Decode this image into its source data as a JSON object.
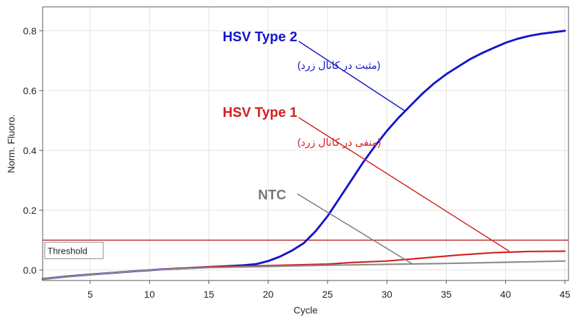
{
  "chart_data": {
    "type": "line",
    "xlabel": "Cycle",
    "ylabel": "Norm. Fluoro.",
    "xlim": [
      1,
      45.3
    ],
    "ylim": [
      -0.035,
      0.88
    ],
    "x_ticks": [
      5,
      10,
      15,
      20,
      25,
      30,
      35,
      40,
      45
    ],
    "y_ticks": [
      0.0,
      0.2,
      0.4,
      0.6,
      0.8
    ],
    "y_tick_labels": [
      "0.0",
      "0.2",
      "0.4",
      "0.6",
      "0.8"
    ],
    "grid": true,
    "threshold": {
      "label": "Threshold",
      "value": 0.1
    },
    "series": [
      {
        "color": "#1515c8",
        "x": [
          1,
          3,
          5,
          7,
          9,
          11,
          13,
          15,
          16,
          17,
          18,
          19,
          20,
          21,
          22,
          23,
          24,
          25,
          26,
          27,
          28,
          29,
          30,
          31,
          32,
          33,
          34,
          35,
          36,
          37,
          38,
          39,
          40,
          41,
          42,
          43,
          44,
          45
        ],
        "y": [
          -0.03,
          -0.022,
          -0.015,
          -0.009,
          -0.003,
          0.002,
          0.006,
          0.01,
          0.012,
          0.014,
          0.016,
          0.02,
          0.03,
          0.045,
          0.065,
          0.09,
          0.13,
          0.18,
          0.24,
          0.3,
          0.36,
          0.415,
          0.465,
          0.51,
          0.55,
          0.59,
          0.625,
          0.655,
          0.68,
          0.705,
          0.725,
          0.743,
          0.76,
          0.773,
          0.783,
          0.79,
          0.795,
          0.8
        ]
      },
      {
        "color": "#d42020",
        "x": [
          1,
          5,
          10,
          15,
          20,
          25,
          27,
          30,
          33,
          36,
          39,
          42,
          45
        ],
        "y": [
          -0.03,
          -0.015,
          0.0,
          0.01,
          0.015,
          0.02,
          0.025,
          0.03,
          0.04,
          0.05,
          0.058,
          0.062,
          0.063
        ]
      },
      {
        "color": "#8c8c8c",
        "x": [
          1,
          5,
          10,
          15,
          20,
          25,
          30,
          35,
          40,
          45
        ],
        "y": [
          -0.03,
          -0.015,
          0.0,
          0.008,
          0.012,
          0.016,
          0.019,
          0.022,
          0.026,
          0.03
        ]
      }
    ],
    "annotations": [
      {
        "title": "HSV Type 2",
        "subtitle": "(مثبت در کانال زرد)",
        "color": "#1515c8",
        "points_to": [
          31.6,
          0.53
        ]
      },
      {
        "title": "HSV Type 1",
        "subtitle": "(منفی در کانال زرد)",
        "color": "#d42020",
        "points_to": [
          40.3,
          0.063
        ]
      },
      {
        "title": "NTC",
        "subtitle": "",
        "color": "#7a7a7a",
        "points_to": [
          32.2,
          0.019
        ]
      }
    ]
  }
}
